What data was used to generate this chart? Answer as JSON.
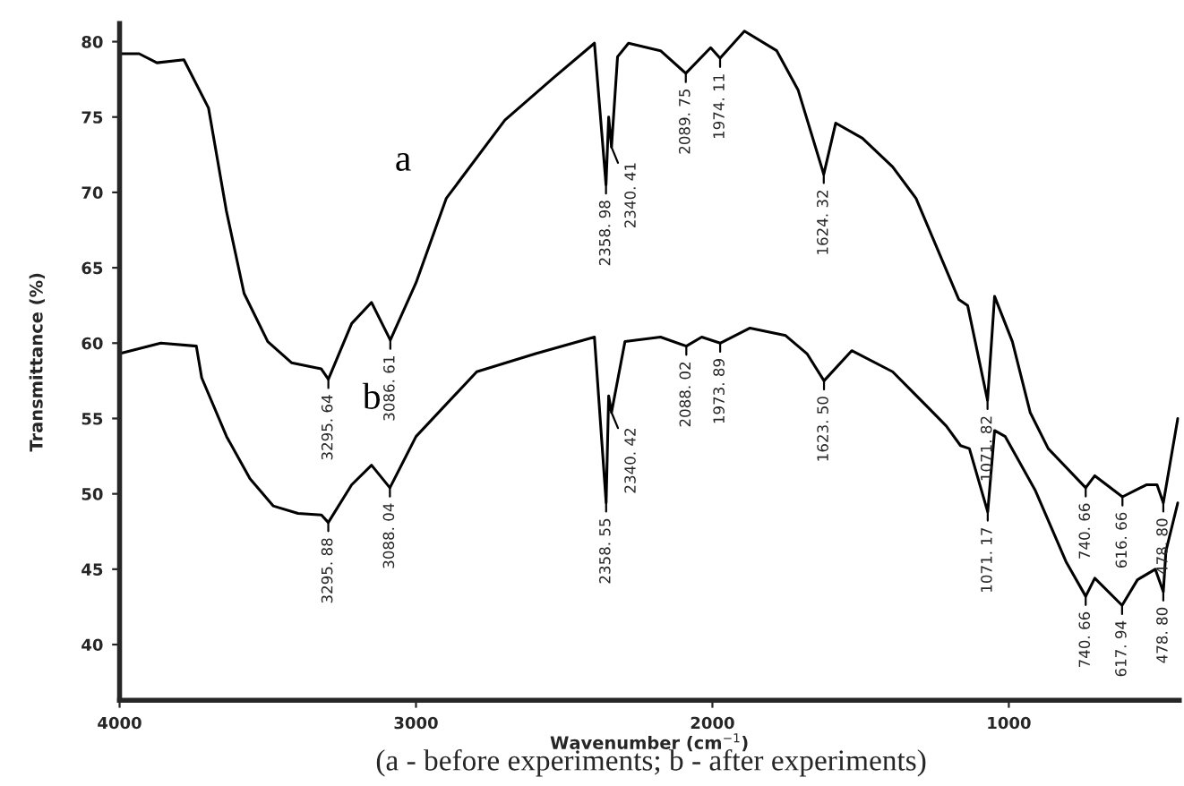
{
  "chart_data": {
    "type": "line",
    "xlabel": "Wavenumber (cm$^{−1}$)",
    "ylabel": "Transmittance (%)",
    "xlim": [
      4000,
      425
    ],
    "xticks": [
      4000,
      3000,
      2000,
      1000
    ],
    "ylim": [
      36.3,
      81.2
    ],
    "yticks": [
      40,
      45,
      50,
      55,
      60,
      65,
      70,
      75,
      80
    ],
    "grid": false,
    "marker": "none",
    "line_style": "solid",
    "series": [
      {
        "name": "a",
        "color": "#000000",
        "x": [
          4000,
          3934,
          3874,
          3783,
          3700,
          3640,
          3580,
          3500,
          3420,
          3320,
          3295.64,
          3217,
          3150,
          3086.61,
          3000,
          2898,
          2700,
          2536,
          2398,
          2358.98,
          2350,
          2340.41,
          2320,
          2283,
          2175,
          2089.75,
          2006,
          1974.11,
          1892,
          1783,
          1711,
          1624.32,
          1584,
          1494,
          1392,
          1313,
          1169,
          1139,
          1071.82,
          1048,
          988,
          928,
          867,
          740.66,
          710,
          616.66,
          536,
          500,
          478.8,
          430
        ],
        "values": [
          79.2,
          79.2,
          78.6,
          78.8,
          75.6,
          68.8,
          63.3,
          60.1,
          58.7,
          58.3,
          57.6,
          61.3,
          62.7,
          60.2,
          64.0,
          69.6,
          74.8,
          77.6,
          79.9,
          70.5,
          75.0,
          73.0,
          79.0,
          79.9,
          79.4,
          77.9,
          79.6,
          78.9,
          80.7,
          79.4,
          76.8,
          71.2,
          74.6,
          73.6,
          71.7,
          69.6,
          62.9,
          62.5,
          56.2,
          63.1,
          60.1,
          55.4,
          53.0,
          50.4,
          51.2,
          49.8,
          50.6,
          50.6,
          49.4,
          55.0
        ]
      },
      {
        "name": "b",
        "color": "#000000",
        "x": [
          4000,
          3861,
          3741,
          3723,
          3639,
          3560,
          3482,
          3398,
          3319,
          3295.88,
          3217,
          3150,
          3088.04,
          3000,
          2795,
          2596,
          2398,
          2358.55,
          2350,
          2340.42,
          2295,
          2175,
          2088.02,
          2036,
          1973.89,
          1873,
          1753,
          1681,
          1623.5,
          1530,
          1392,
          1271,
          1211,
          1163,
          1133,
          1071.17,
          1048,
          1012,
          910,
          807,
          740.66,
          710,
          617.94,
          566,
          506,
          478.8,
          470,
          430
        ],
        "values": [
          59.3,
          60.0,
          59.8,
          57.7,
          53.8,
          51.0,
          49.2,
          48.7,
          48.6,
          48.1,
          50.6,
          51.9,
          50.4,
          53.8,
          58.1,
          59.3,
          60.4,
          49.4,
          56.5,
          55.4,
          60.1,
          60.4,
          59.8,
          60.4,
          60.0,
          61.0,
          60.5,
          59.3,
          57.5,
          59.5,
          58.1,
          55.7,
          54.5,
          53.2,
          53.0,
          48.8,
          54.2,
          53.8,
          50.2,
          45.5,
          43.2,
          44.4,
          42.6,
          44.3,
          45.0,
          43.5,
          46.2,
          49.4
        ]
      }
    ],
    "annotations": [
      {
        "text": "3295. 64",
        "x": 3295.64,
        "y": 57.6
      },
      {
        "text": "3086. 61",
        "x": 3086.61,
        "y": 60.2
      },
      {
        "text": "2358. 98",
        "x": 2358.98,
        "y": 70.5
      },
      {
        "text": "2340. 41",
        "x": 2340.41,
        "y": 73.0
      },
      {
        "text": "2089. 75",
        "x": 2089.75,
        "y": 77.9
      },
      {
        "text": "1974. 11",
        "x": 1974.11,
        "y": 78.9
      },
      {
        "text": "1624. 32",
        "x": 1624.32,
        "y": 71.2
      },
      {
        "text": "1071. 82",
        "x": 1071.82,
        "y": 56.2
      },
      {
        "text": "740. 66",
        "x": 740.66,
        "y": 50.4
      },
      {
        "text": "616. 66",
        "x": 616.66,
        "y": 49.8
      },
      {
        "text": "478. 80",
        "x": 478.8,
        "y": 49.4
      },
      {
        "text": "3295. 88",
        "x": 3295.88,
        "y": 48.1
      },
      {
        "text": "3088. 04",
        "x": 3088.04,
        "y": 50.4
      },
      {
        "text": "2358. 55",
        "x": 2358.55,
        "y": 49.4
      },
      {
        "text": "2340. 42",
        "x": 2340.42,
        "y": 55.4
      },
      {
        "text": "2088. 02",
        "x": 2088.02,
        "y": 59.8
      },
      {
        "text": "1973. 89",
        "x": 1973.89,
        "y": 60.0
      },
      {
        "text": "1623. 50",
        "x": 1623.5,
        "y": 57.5
      },
      {
        "text": "1071. 17",
        "x": 1071.17,
        "y": 48.8
      },
      {
        "text": "740. 66",
        "x": 740.66,
        "y": 43.2
      },
      {
        "text": "617. 94",
        "x": 617.94,
        "y": 42.6
      },
      {
        "text": "478. 80",
        "x": 478.8,
        "y": 43.5
      },
      "(a - before experiments; b - after experiments)"
    ]
  }
}
